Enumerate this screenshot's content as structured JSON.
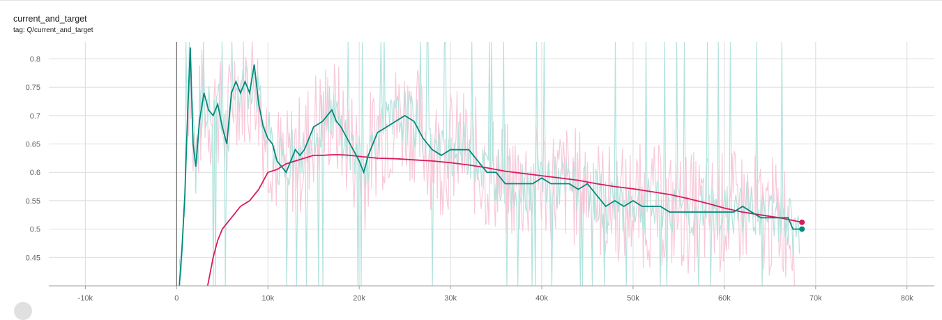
{
  "card": {
    "title": "current_and_target",
    "tag": "tag: Q/current_and_target"
  },
  "colors": {
    "grid": "#dcdcdc",
    "axis": "#9e9e9e",
    "current_raw": "#b2e3dc",
    "current_smoothed": "#00897b",
    "target_raw": "#f8c9d9",
    "target_smoothed": "#d81b60"
  },
  "chart_data": {
    "type": "line",
    "title": "current_and_target",
    "xlabel": "",
    "ylabel": "",
    "xlim": [
      -14000,
      83000
    ],
    "ylim": [
      0.4,
      0.83
    ],
    "x_ticks": [
      -10000,
      0,
      10000,
      20000,
      30000,
      40000,
      50000,
      60000,
      70000,
      80000
    ],
    "x_tick_labels": [
      "-10k",
      "0",
      "10k",
      "20k",
      "30k",
      "40k",
      "50k",
      "60k",
      "70k",
      "80k"
    ],
    "y_ticks": [
      0.45,
      0.5,
      0.55,
      0.6,
      0.65,
      0.7,
      0.75,
      0.8
    ],
    "y_tick_labels": [
      "0.45",
      "0.5",
      "0.55",
      "0.6",
      "0.65",
      "0.7",
      "0.75",
      "0.8"
    ],
    "grid": true,
    "legend": "none",
    "series": [
      {
        "key": "current",
        "x": [
          300,
          600,
          900,
          1200,
          1500,
          1800,
          2100,
          2500,
          3000,
          3500,
          4000,
          4500,
          5000,
          5500,
          6000,
          6500,
          7000,
          7500,
          8000,
          8500,
          9000,
          9500,
          10000,
          10500,
          11000,
          11500,
          12000,
          12500,
          13000,
          13500,
          14000,
          15000,
          16000,
          17000,
          17500,
          18000,
          19000,
          20000,
          20500,
          21000,
          22000,
          23000,
          24000,
          25000,
          26000,
          27000,
          28000,
          29000,
          30000,
          31000,
          32000,
          33000,
          34000,
          35000,
          36000,
          37000,
          38000,
          39000,
          40000,
          41000,
          42000,
          43000,
          44000,
          45000,
          46000,
          47000,
          48000,
          49000,
          50000,
          51000,
          52000,
          53000,
          54000,
          55000,
          56000,
          57000,
          58000,
          59000,
          60000,
          61000,
          62000,
          63000,
          64000,
          65000,
          66000,
          67000,
          67500,
          68000,
          68500
        ],
        "y": [
          0.4,
          0.47,
          0.56,
          0.7,
          0.82,
          0.65,
          0.61,
          0.69,
          0.74,
          0.71,
          0.7,
          0.72,
          0.68,
          0.65,
          0.74,
          0.76,
          0.74,
          0.76,
          0.74,
          0.79,
          0.72,
          0.68,
          0.66,
          0.65,
          0.62,
          0.61,
          0.6,
          0.62,
          0.64,
          0.63,
          0.64,
          0.68,
          0.69,
          0.71,
          0.69,
          0.68,
          0.65,
          0.62,
          0.6,
          0.63,
          0.67,
          0.68,
          0.69,
          0.7,
          0.69,
          0.66,
          0.64,
          0.63,
          0.64,
          0.64,
          0.64,
          0.62,
          0.6,
          0.6,
          0.58,
          0.58,
          0.58,
          0.58,
          0.59,
          0.58,
          0.58,
          0.58,
          0.57,
          0.58,
          0.56,
          0.54,
          0.55,
          0.54,
          0.55,
          0.54,
          0.54,
          0.54,
          0.53,
          0.53,
          0.53,
          0.53,
          0.53,
          0.53,
          0.53,
          0.53,
          0.54,
          0.53,
          0.52,
          0.52,
          0.52,
          0.52,
          0.5,
          0.5,
          0.5
        ]
      },
      {
        "key": "target",
        "x": [
          3400,
          4000,
          4500,
          5000,
          5500,
          6000,
          6500,
          7000,
          8000,
          9000,
          10000,
          11000,
          12000,
          13000,
          14000,
          15000,
          16000,
          17000,
          18000,
          19000,
          20000,
          22000,
          24000,
          26000,
          28000,
          30000,
          32000,
          34000,
          36000,
          38000,
          40000,
          42000,
          44000,
          46000,
          48000,
          50000,
          52000,
          54000,
          56000,
          58000,
          60000,
          62000,
          64000,
          66000,
          68500
        ],
        "y": [
          0.4,
          0.45,
          0.48,
          0.5,
          0.51,
          0.52,
          0.53,
          0.54,
          0.55,
          0.57,
          0.6,
          0.605,
          0.615,
          0.62,
          0.625,
          0.63,
          0.63,
          0.631,
          0.631,
          0.63,
          0.628,
          0.625,
          0.624,
          0.622,
          0.62,
          0.617,
          0.613,
          0.608,
          0.602,
          0.598,
          0.594,
          0.59,
          0.586,
          0.58,
          0.575,
          0.571,
          0.566,
          0.561,
          0.554,
          0.546,
          0.537,
          0.53,
          0.525,
          0.52,
          0.512
        ]
      }
    ]
  }
}
